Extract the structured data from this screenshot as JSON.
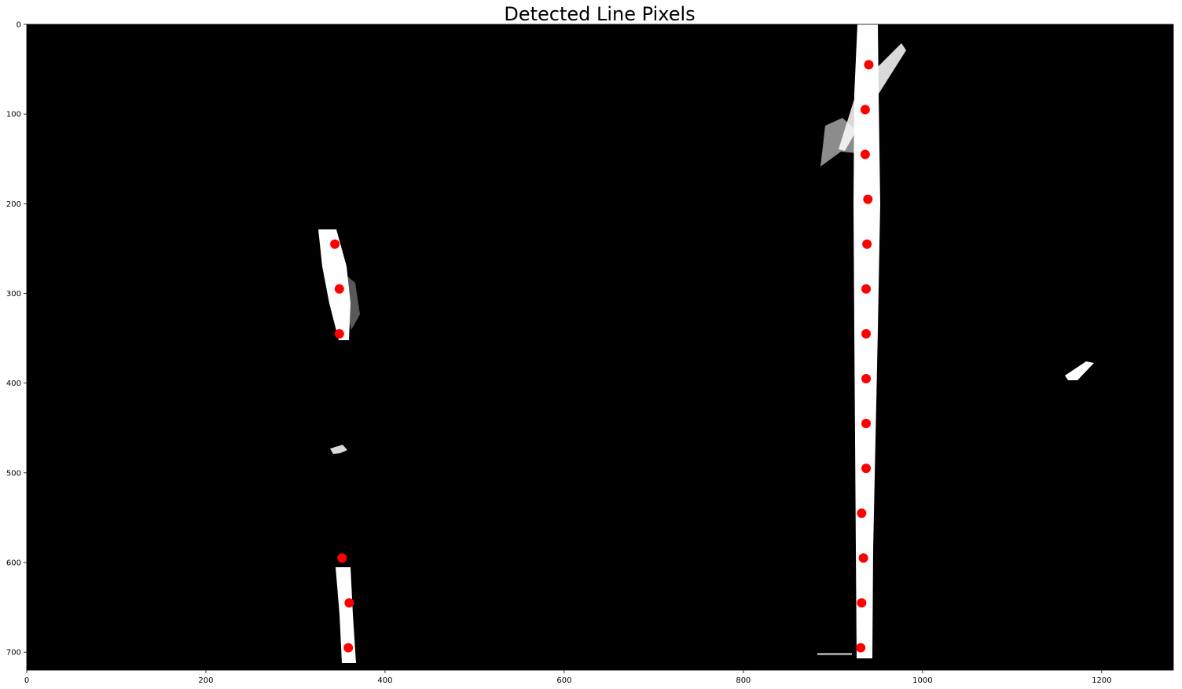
{
  "chart_data": {
    "type": "scatter",
    "title": "Detected Line Pixels",
    "xlabel": "",
    "ylabel": "",
    "xlim": [
      0,
      1280
    ],
    "ylim": [
      720,
      0
    ],
    "x_ticks": [
      "0",
      "200",
      "400",
      "600",
      "800",
      "1000",
      "1200"
    ],
    "y_ticks": [
      "0",
      "100",
      "200",
      "300",
      "400",
      "500",
      "600",
      "700"
    ],
    "background_image": "binary lane-line mask (white line pixels on black)",
    "point_color": "#ff0000",
    "series": [
      {
        "points": [
          [
            344,
            245
          ],
          [
            349,
            295
          ],
          [
            349,
            345
          ],
          [
            352,
            595
          ],
          [
            360,
            645
          ],
          [
            359,
            695
          ]
        ]
      },
      {
        "points": [
          [
            940,
            45
          ],
          [
            936,
            95
          ],
          [
            936,
            145
          ],
          [
            939,
            195
          ],
          [
            938,
            245
          ],
          [
            937,
            295
          ],
          [
            937,
            345
          ],
          [
            937,
            395
          ],
          [
            937,
            445
          ],
          [
            937,
            495
          ],
          [
            932,
            545
          ],
          [
            934,
            595
          ],
          [
            932,
            645
          ],
          [
            931,
            695
          ]
        ]
      }
    ]
  }
}
